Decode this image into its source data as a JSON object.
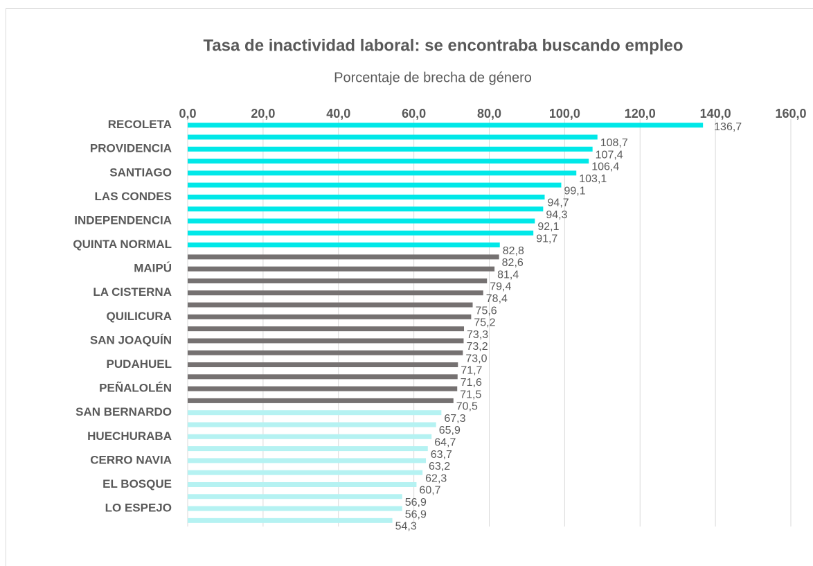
{
  "chart_data": {
    "type": "bar",
    "orientation": "horizontal",
    "title": "Tasa de inactividad laboral: se encontraba buscando empleo",
    "x_axis_label": "Porcentaje de brecha de género",
    "categories": [
      "RECOLETA",
      null,
      "PROVIDENCIA",
      null,
      "SANTIAGO",
      null,
      "LAS CONDES",
      null,
      "INDEPENDENCIA",
      null,
      "QUINTA NORMAL",
      null,
      "MAIPÚ",
      null,
      "LA CISTERNA",
      null,
      "QUILICURA",
      null,
      "SAN JOAQUÍN",
      null,
      "PUDAHUEL",
      null,
      "PEÑALOLÉN",
      null,
      "SAN BERNARDO",
      null,
      "HUECHURABA",
      null,
      "CERRO NAVIA",
      null,
      "EL BOSQUE",
      null,
      "LO ESPEJO",
      null
    ],
    "values": [
      136.7,
      108.7,
      107.4,
      106.4,
      103.1,
      99.1,
      94.7,
      94.3,
      92.1,
      91.7,
      82.8,
      82.6,
      81.4,
      79.4,
      78.4,
      75.6,
      75.2,
      73.3,
      73.2,
      73.0,
      71.7,
      71.6,
      71.5,
      70.5,
      67.3,
      65.9,
      64.7,
      63.7,
      63.2,
      62.3,
      60.7,
      56.9,
      56.9,
      54.3
    ],
    "value_labels": [
      "136,7",
      "108,7",
      "107,4",
      "106,4",
      "103,1",
      "99,1",
      "94,7",
      "94,3",
      "92,1",
      "91,7",
      "82,8",
      "82,6",
      "81,4",
      "79,4",
      "78,4",
      "75,6",
      "75,2",
      "73,3",
      "73,2",
      "73,0",
      "71,7",
      "71,6",
      "71,5",
      "70,5",
      "67,3",
      "65,9",
      "64,7",
      "63,7",
      "63,2",
      "62,3",
      "60,7",
      "56,9",
      "56,9",
      "54,3"
    ],
    "colors": [
      "#00e8e8",
      "#00e8e8",
      "#00e8e8",
      "#00e8e8",
      "#00e8e8",
      "#00e8e8",
      "#00e8e8",
      "#00e8e8",
      "#00e8e8",
      "#00e8e8",
      "#00e8e8",
      "#757171",
      "#757171",
      "#757171",
      "#757171",
      "#757171",
      "#757171",
      "#757171",
      "#757171",
      "#757171",
      "#757171",
      "#757171",
      "#757171",
      "#757171",
      "#b5f2f2",
      "#b5f2f2",
      "#b5f2f2",
      "#b5f2f2",
      "#b5f2f2",
      "#b5f2f2",
      "#b5f2f2",
      "#b5f2f2",
      "#b5f2f2",
      "#b5f2f2"
    ],
    "xlim": [
      0,
      160
    ],
    "xticks": [
      {
        "value": 0,
        "label": "0,0"
      },
      {
        "value": 20,
        "label": "20,0"
      },
      {
        "value": 40,
        "label": "40,0"
      },
      {
        "value": 60,
        "label": "60,0"
      },
      {
        "value": 80,
        "label": "80,0"
      },
      {
        "value": 100,
        "label": "100,0"
      },
      {
        "value": 120,
        "label": "120,0"
      },
      {
        "value": 140,
        "label": "140,0"
      },
      {
        "value": 160,
        "label": "160,0"
      }
    ],
    "grid": true
  }
}
